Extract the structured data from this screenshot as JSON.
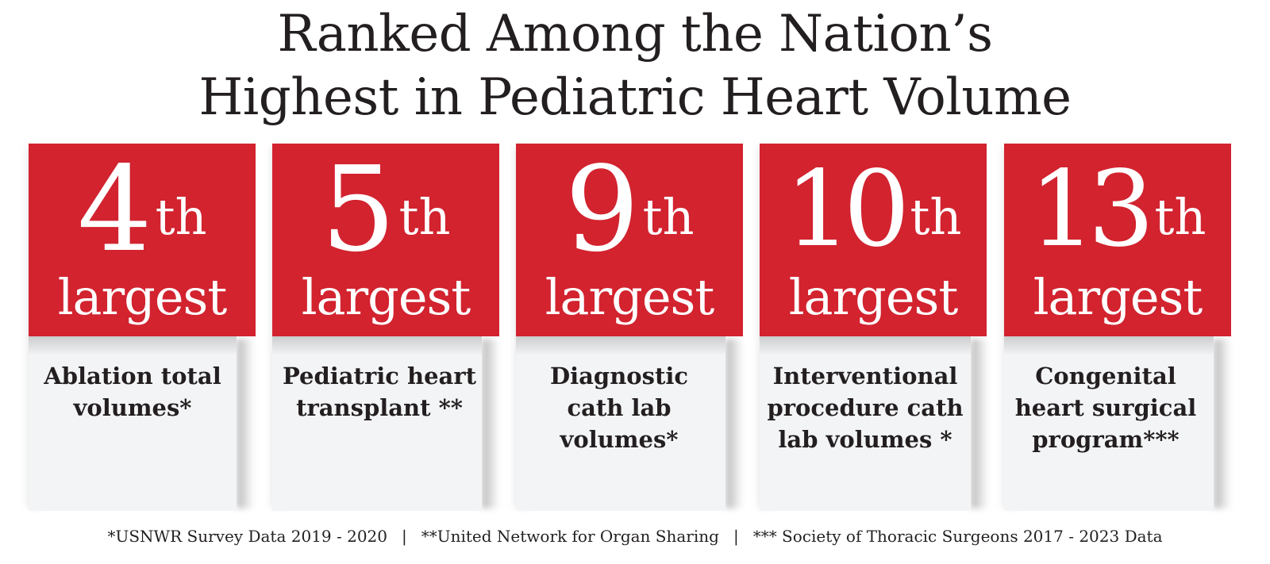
{
  "title": {
    "line1": "Ranked Among the Nation’s",
    "line2": "Highest in Pediatric Heart Volume"
  },
  "colors": {
    "red": "#d2232f",
    "panel": "#f3f4f6",
    "text": "#231f20"
  },
  "cards": [
    {
      "number": "4",
      "suffix": "th",
      "label": "largest",
      "description": "Ablation total volumes*"
    },
    {
      "number": "5",
      "suffix": "th",
      "label": "largest",
      "description": "Pediatric heart transplant **"
    },
    {
      "number": "9",
      "suffix": "th",
      "label": "largest",
      "description": "Diagnostic cath lab volumes*"
    },
    {
      "number": "10",
      "suffix": "th",
      "label": "largest",
      "description": "Interventional procedure cath lab volumes *"
    },
    {
      "number": "13",
      "suffix": "th",
      "label": "largest",
      "description": "Congenital heart surgical program***"
    }
  ],
  "footer": {
    "note1": "*USNWR Survey Data 2019 - 2020",
    "separator": "|",
    "note2": "**United Network for Organ Sharing",
    "note3": "*** Society of Thoracic Surgeons 2017 - 2023 Data"
  }
}
